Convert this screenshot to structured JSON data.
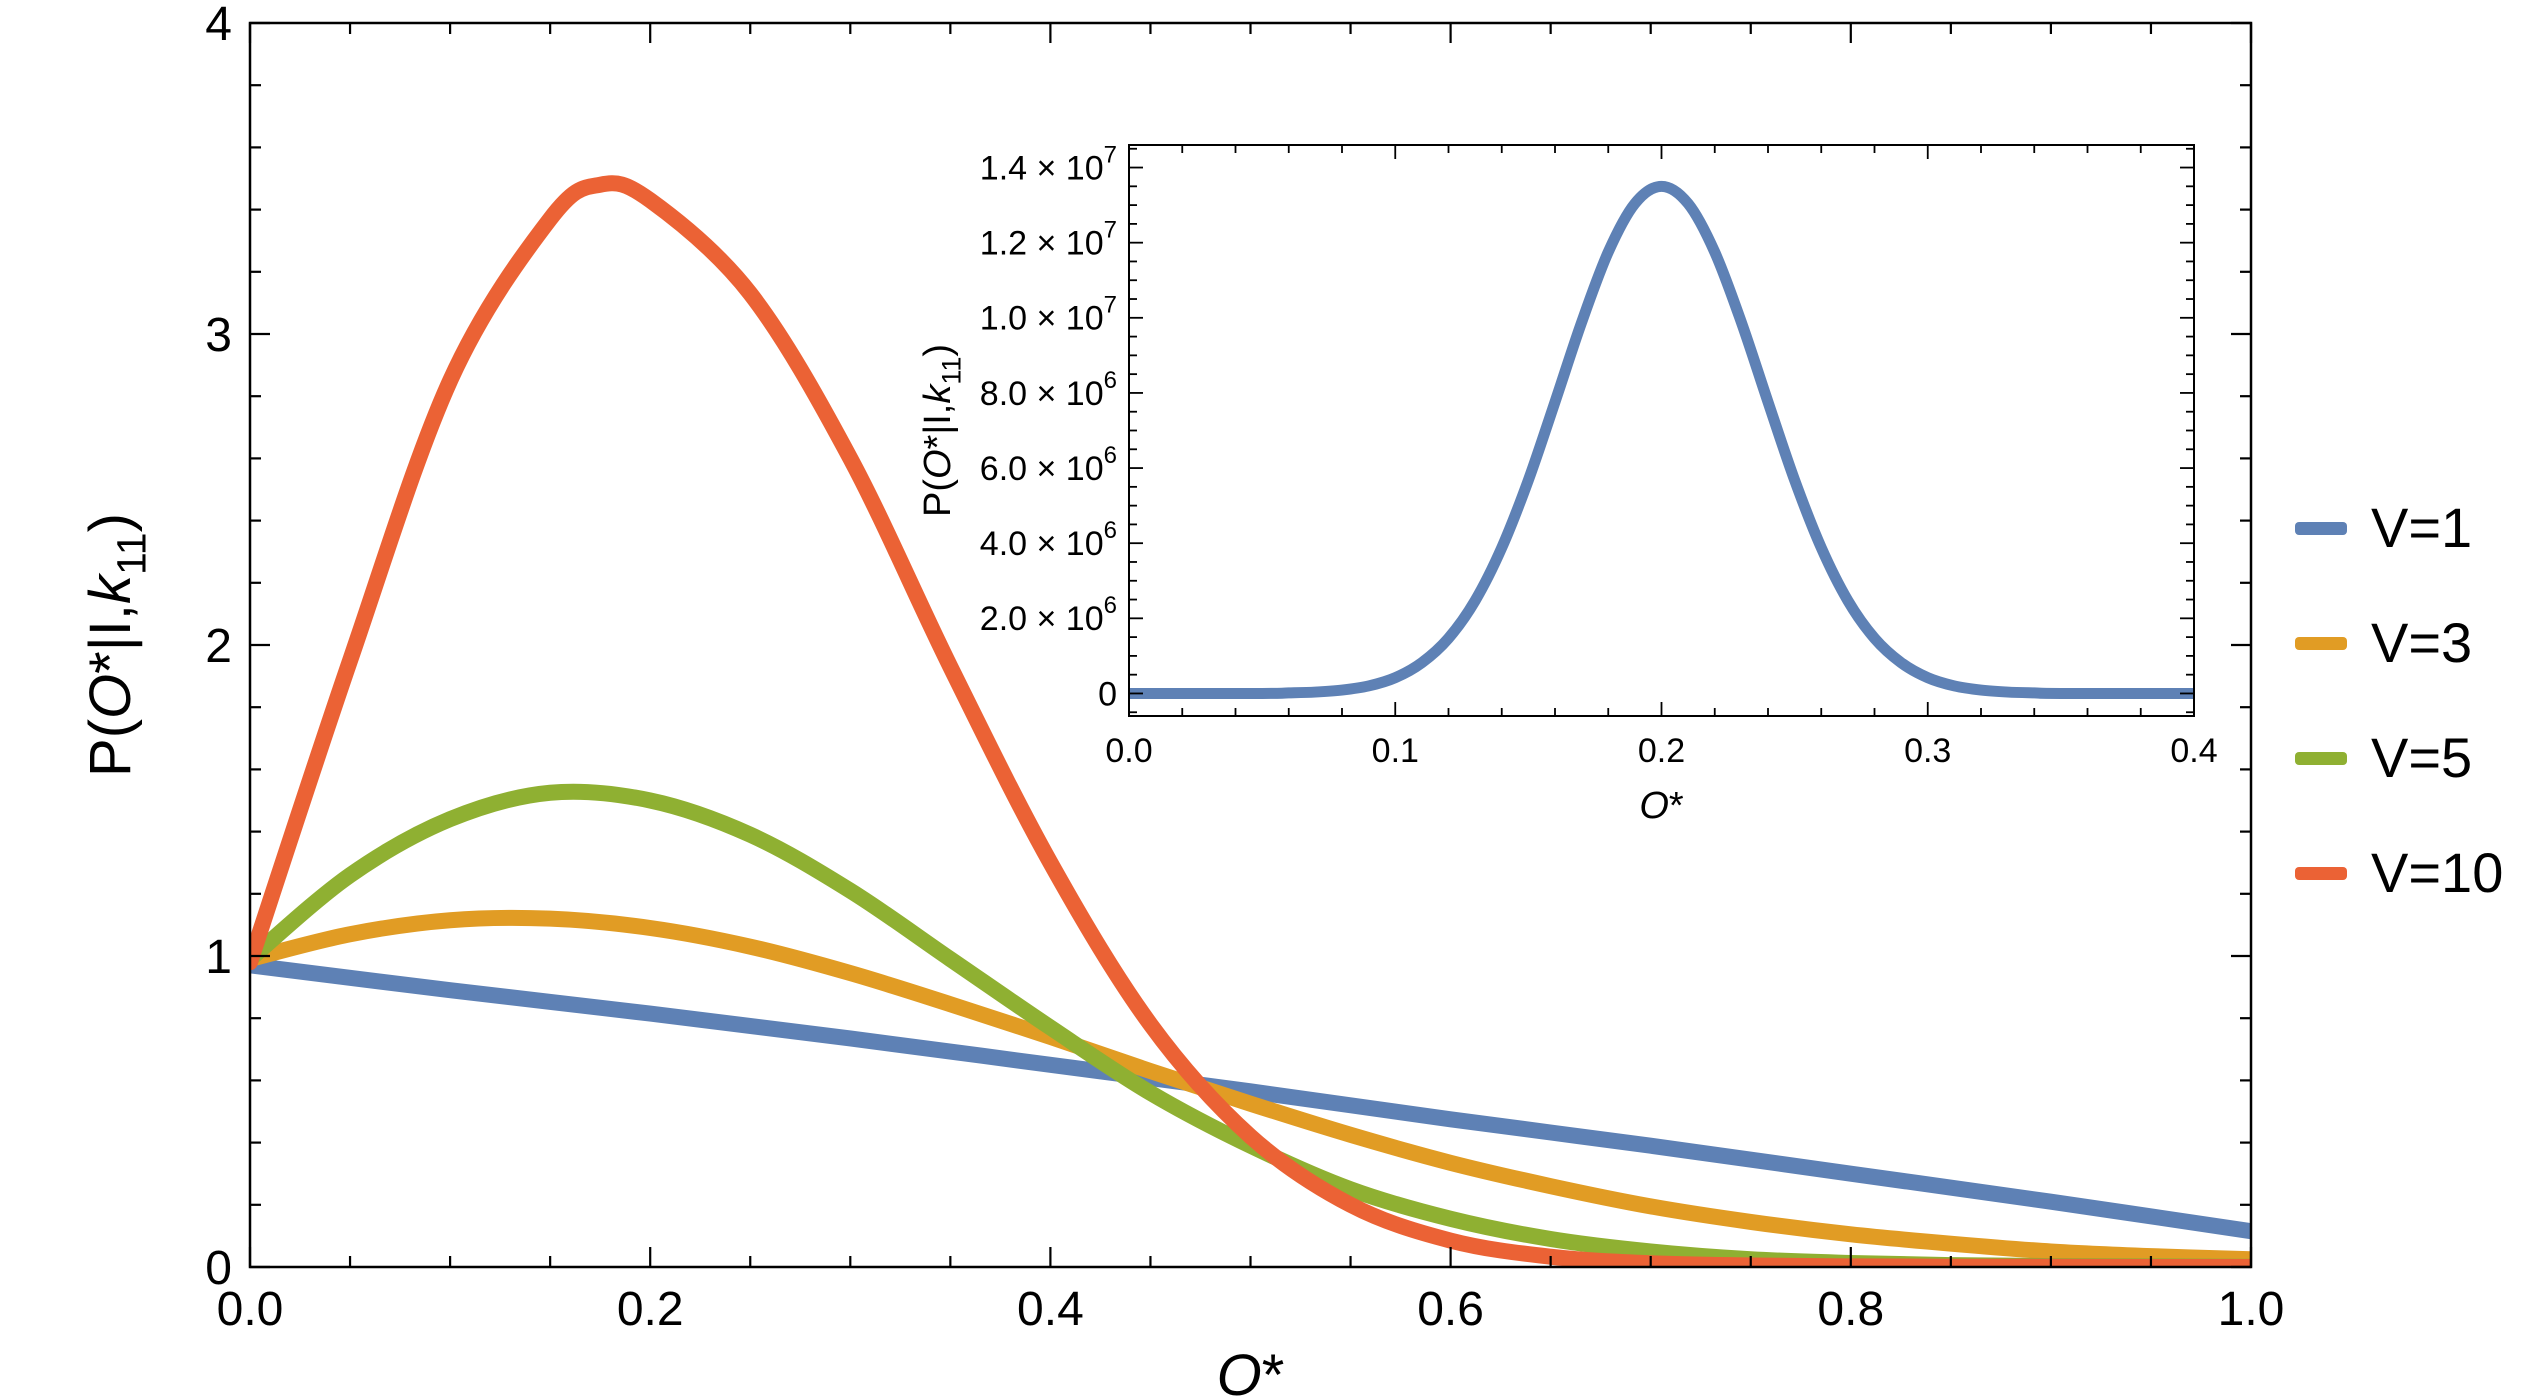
{
  "figure": {
    "background": "#ffffff"
  },
  "legend": {
    "position": "right-outside",
    "items": [
      {
        "label": "V=1",
        "color": "#5e81b5"
      },
      {
        "label": "V=3",
        "color": "#e19c24"
      },
      {
        "label": "V=5",
        "color": "#8fb032"
      },
      {
        "label": "V=10",
        "color": "#eb6235"
      }
    ]
  },
  "chart_data": [
    {
      "id": "main",
      "type": "line",
      "title": "",
      "xlabel": "O*",
      "ylabel": "P(O*|I,k11)",
      "xlabel_parts": [
        {
          "text": "O",
          "italic": true
        },
        {
          "text": "*"
        }
      ],
      "ylabel_parts": [
        {
          "text": "P("
        },
        {
          "text": "O",
          "italic": true
        },
        {
          "text": "*|I,"
        },
        {
          "text": "k",
          "italic": true
        },
        {
          "text": "11",
          "sub": true
        },
        {
          "text": ")"
        }
      ],
      "xlim": [
        0,
        1
      ],
      "ylim": [
        0,
        4
      ],
      "xticks": [
        {
          "v": 0,
          "label": "0.0"
        },
        {
          "v": 0.2,
          "label": "0.2"
        },
        {
          "v": 0.4,
          "label": "0.4"
        },
        {
          "v": 0.6,
          "label": "0.6"
        },
        {
          "v": 0.8,
          "label": "0.8"
        },
        {
          "v": 1,
          "label": "1.0"
        }
      ],
      "yticks": [
        {
          "v": 0,
          "label": "0"
        },
        {
          "v": 1,
          "label": "1"
        },
        {
          "v": 2,
          "label": "2"
        },
        {
          "v": 3,
          "label": "3"
        },
        {
          "v": 4,
          "label": "4"
        }
      ],
      "xminor": 0.05,
      "yminor": 0.2,
      "grid": false,
      "legend_position": "right-outside",
      "series": [
        {
          "name": "V=1",
          "color": "#5e81b5",
          "points": [
            [
              0,
              0.97
            ],
            [
              0.1,
              0.89
            ],
            [
              0.2,
              0.815
            ],
            [
              0.3,
              0.735
            ],
            [
              0.4,
              0.65
            ],
            [
              0.5,
              0.565
            ],
            [
              0.6,
              0.475
            ],
            [
              0.7,
              0.39
            ],
            [
              0.8,
              0.3
            ],
            [
              0.9,
              0.21
            ],
            [
              1.0,
              0.115
            ]
          ]
        },
        {
          "name": "V=3",
          "color": "#e19c24",
          "points": [
            [
              0,
              0.99
            ],
            [
              0.05,
              1.07
            ],
            [
              0.1,
              1.115
            ],
            [
              0.15,
              1.12
            ],
            [
              0.2,
              1.09
            ],
            [
              0.25,
              1.03
            ],
            [
              0.3,
              0.945
            ],
            [
              0.35,
              0.845
            ],
            [
              0.4,
              0.74
            ],
            [
              0.45,
              0.63
            ],
            [
              0.5,
              0.525
            ],
            [
              0.55,
              0.425
            ],
            [
              0.6,
              0.335
            ],
            [
              0.65,
              0.26
            ],
            [
              0.7,
              0.195
            ],
            [
              0.75,
              0.145
            ],
            [
              0.8,
              0.105
            ],
            [
              0.85,
              0.075
            ],
            [
              0.9,
              0.05
            ],
            [
              0.95,
              0.035
            ],
            [
              1.0,
              0.025
            ]
          ]
        },
        {
          "name": "V=5",
          "color": "#8fb032",
          "points": [
            [
              0,
              0.99
            ],
            [
              0.05,
              1.26
            ],
            [
              0.1,
              1.44
            ],
            [
              0.15,
              1.525
            ],
            [
              0.2,
              1.5
            ],
            [
              0.25,
              1.39
            ],
            [
              0.3,
              1.21
            ],
            [
              0.35,
              0.99
            ],
            [
              0.4,
              0.77
            ],
            [
              0.45,
              0.56
            ],
            [
              0.5,
              0.39
            ],
            [
              0.55,
              0.25
            ],
            [
              0.6,
              0.155
            ],
            [
              0.65,
              0.09
            ],
            [
              0.7,
              0.05
            ],
            [
              0.75,
              0.025
            ],
            [
              0.8,
              0.013
            ],
            [
              0.85,
              0.006
            ],
            [
              0.9,
              0.003
            ],
            [
              0.95,
              0.002
            ],
            [
              1.0,
              0.001
            ]
          ]
        },
        {
          "name": "V=10",
          "color": "#eb6235",
          "points": [
            [
              0,
              0.98
            ],
            [
              0.05,
              1.95
            ],
            [
              0.1,
              2.85
            ],
            [
              0.15,
              3.37
            ],
            [
              0.175,
              3.48
            ],
            [
              0.2,
              3.43
            ],
            [
              0.25,
              3.13
            ],
            [
              0.3,
              2.6
            ],
            [
              0.35,
              1.93
            ],
            [
              0.4,
              1.3
            ],
            [
              0.45,
              0.78
            ],
            [
              0.5,
              0.42
            ],
            [
              0.55,
              0.2
            ],
            [
              0.6,
              0.085
            ],
            [
              0.65,
              0.033
            ],
            [
              0.7,
              0.012
            ],
            [
              0.75,
              0.005
            ],
            [
              0.8,
              0.002
            ],
            [
              0.85,
              0.001
            ],
            [
              0.9,
              0.001
            ],
            [
              0.95,
              0.0
            ],
            [
              1.0,
              0.0
            ]
          ]
        }
      ]
    },
    {
      "id": "inset",
      "type": "line",
      "title": "",
      "xlabel": "O*",
      "ylabel": "P(O*|I,k11)",
      "xlabel_parts": [
        {
          "text": "O",
          "italic": true
        },
        {
          "text": "*"
        }
      ],
      "ylabel_parts": [
        {
          "text": "P("
        },
        {
          "text": "O",
          "italic": true
        },
        {
          "text": "*|I,"
        },
        {
          "text": "k",
          "italic": true
        },
        {
          "text": "11",
          "sub": true
        },
        {
          "text": ")"
        }
      ],
      "xlim": [
        0,
        0.4
      ],
      "ylim": [
        -600000,
        14600000
      ],
      "xticks": [
        {
          "v": 0,
          "label": "0.0"
        },
        {
          "v": 0.1,
          "label": "0.1"
        },
        {
          "v": 0.2,
          "label": "0.2"
        },
        {
          "v": 0.3,
          "label": "0.3"
        },
        {
          "v": 0.4,
          "label": "0.4"
        }
      ],
      "yticks": [
        {
          "v": 0,
          "label": "0"
        },
        {
          "v": 2000000,
          "label": "2.0 × 10^6"
        },
        {
          "v": 4000000,
          "label": "4.0 × 10^6"
        },
        {
          "v": 6000000,
          "label": "6.0 × 10^6"
        },
        {
          "v": 8000000,
          "label": "8.0 × 10^6"
        },
        {
          "v": 10000000,
          "label": "1.0 × 10^7"
        },
        {
          "v": 12000000,
          "label": "1.2 × 10^7"
        },
        {
          "v": 14000000,
          "label": "1.4 × 10^7"
        }
      ],
      "xminor": 0.02,
      "yminor": 500000,
      "grid": false,
      "series": [
        {
          "name": "V=1",
          "color": "#5e81b5",
          "points": [
            [
              0,
              0
            ],
            [
              0.05,
              0
            ],
            [
              0.06,
              14000
            ],
            [
              0.07,
              37000
            ],
            [
              0.08,
              90000
            ],
            [
              0.09,
              200000
            ],
            [
              0.1,
              420000
            ],
            [
              0.11,
              820000
            ],
            [
              0.12,
              1470000
            ],
            [
              0.13,
              2470000
            ],
            [
              0.14,
              3880000
            ],
            [
              0.15,
              5680000
            ],
            [
              0.16,
              7760000
            ],
            [
              0.17,
              9880000
            ],
            [
              0.18,
              11750000
            ],
            [
              0.19,
              13040000
            ],
            [
              0.2,
              13500000
            ],
            [
              0.21,
              13040000
            ],
            [
              0.22,
              11750000
            ],
            [
              0.23,
              9880000
            ],
            [
              0.24,
              7760000
            ],
            [
              0.25,
              5680000
            ],
            [
              0.26,
              3880000
            ],
            [
              0.27,
              2470000
            ],
            [
              0.28,
              1470000
            ],
            [
              0.29,
              820000
            ],
            [
              0.3,
              420000
            ],
            [
              0.31,
              200000
            ],
            [
              0.32,
              90000
            ],
            [
              0.33,
              37000
            ],
            [
              0.34,
              14000
            ],
            [
              0.35,
              0
            ],
            [
              0.4,
              0
            ]
          ]
        }
      ]
    }
  ]
}
